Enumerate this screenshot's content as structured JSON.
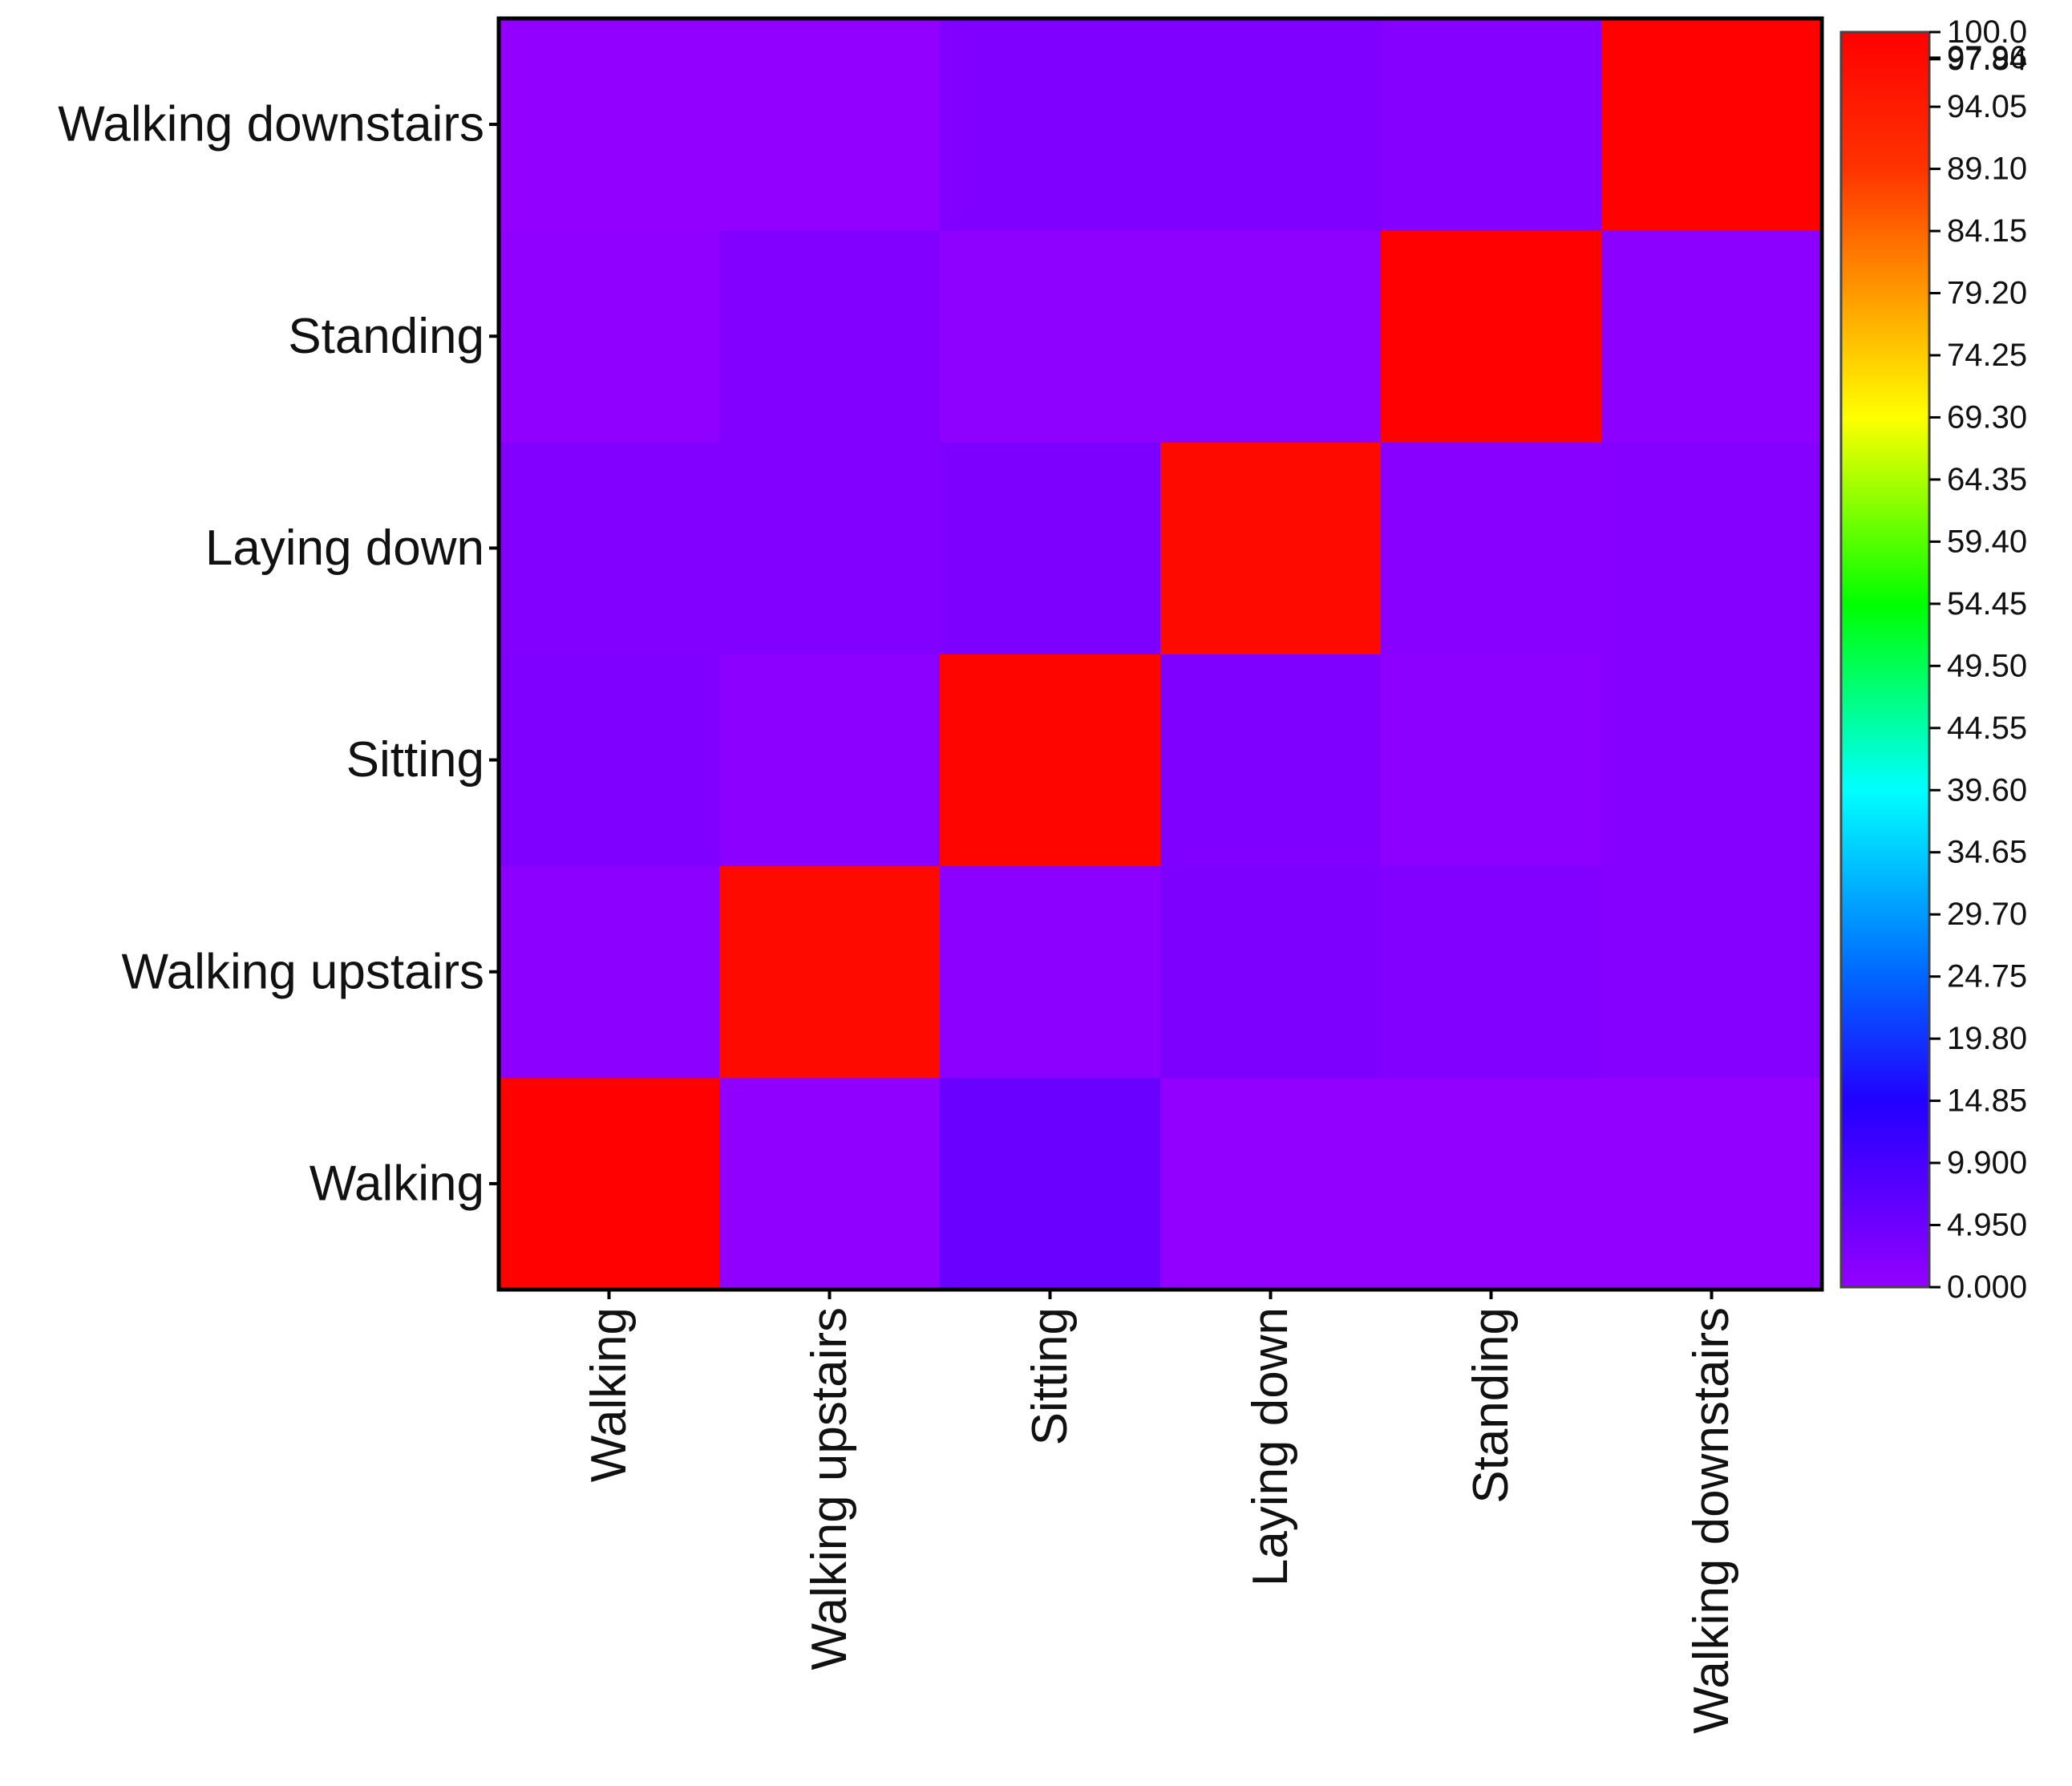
{
  "chart_data": {
    "type": "heatmap",
    "title": "",
    "xlabel": "",
    "ylabel": "",
    "x_categories": [
      "Walking",
      "Walking upstairs",
      "Sitting",
      "Laying down",
      "Standing",
      "Walking downstairs"
    ],
    "y_categories": [
      "Walking",
      "Walking upstairs",
      "Sitting",
      "Laying down",
      "Standing",
      "Walking downstairs"
    ],
    "values": [
      [
        99.5,
        0.5,
        5.5,
        0.3,
        0.3,
        0.3
      ],
      [
        1.0,
        97.9,
        1.0,
        3.0,
        2.5,
        2.0
      ],
      [
        2.8,
        1.2,
        99.0,
        2.8,
        1.2,
        1.8
      ],
      [
        2.5,
        2.5,
        3.0,
        97.9,
        1.5,
        2.0
      ],
      [
        0.5,
        2.5,
        0.8,
        0.8,
        99.5,
        1.0
      ],
      [
        0.3,
        0.3,
        2.8,
        2.8,
        2.0,
        99.5
      ]
    ],
    "value_order": "rows listed bottom-to-top following y_categories; columns follow x_categories",
    "colorbar": {
      "min": 0,
      "max": 100,
      "tick_values": [
        0,
        4.95,
        9.9,
        14.85,
        19.8,
        24.75,
        29.7,
        34.65,
        39.6,
        44.55,
        49.5,
        54.45,
        59.4,
        64.35,
        69.3,
        74.25,
        79.2,
        84.15,
        89.1,
        94.05,
        97.84,
        97.96,
        100
      ],
      "tick_labels": [
        "0.000",
        "4.950",
        "9.900",
        "14.85",
        "19.80",
        "24.75",
        "29.70",
        "34.65",
        "39.60",
        "44.55",
        "49.50",
        "54.45",
        "59.40",
        "64.35",
        "69.30",
        "74.25",
        "79.20",
        "84.15",
        "89.10",
        "94.05",
        "97.84",
        "97.96",
        "100.0"
      ],
      "stops": [
        {
          "value": 0,
          "color": "#9400ff"
        },
        {
          "value": 14.85,
          "color": "#2200ff"
        },
        {
          "value": 24.75,
          "color": "#0066ff"
        },
        {
          "value": 39.6,
          "color": "#00ffff"
        },
        {
          "value": 54.45,
          "color": "#00ff00"
        },
        {
          "value": 69.3,
          "color": "#ffff00"
        },
        {
          "value": 79.2,
          "color": "#ff9900"
        },
        {
          "value": 89.1,
          "color": "#ff3300"
        },
        {
          "value": 100,
          "color": "#ff0000"
        }
      ]
    }
  }
}
